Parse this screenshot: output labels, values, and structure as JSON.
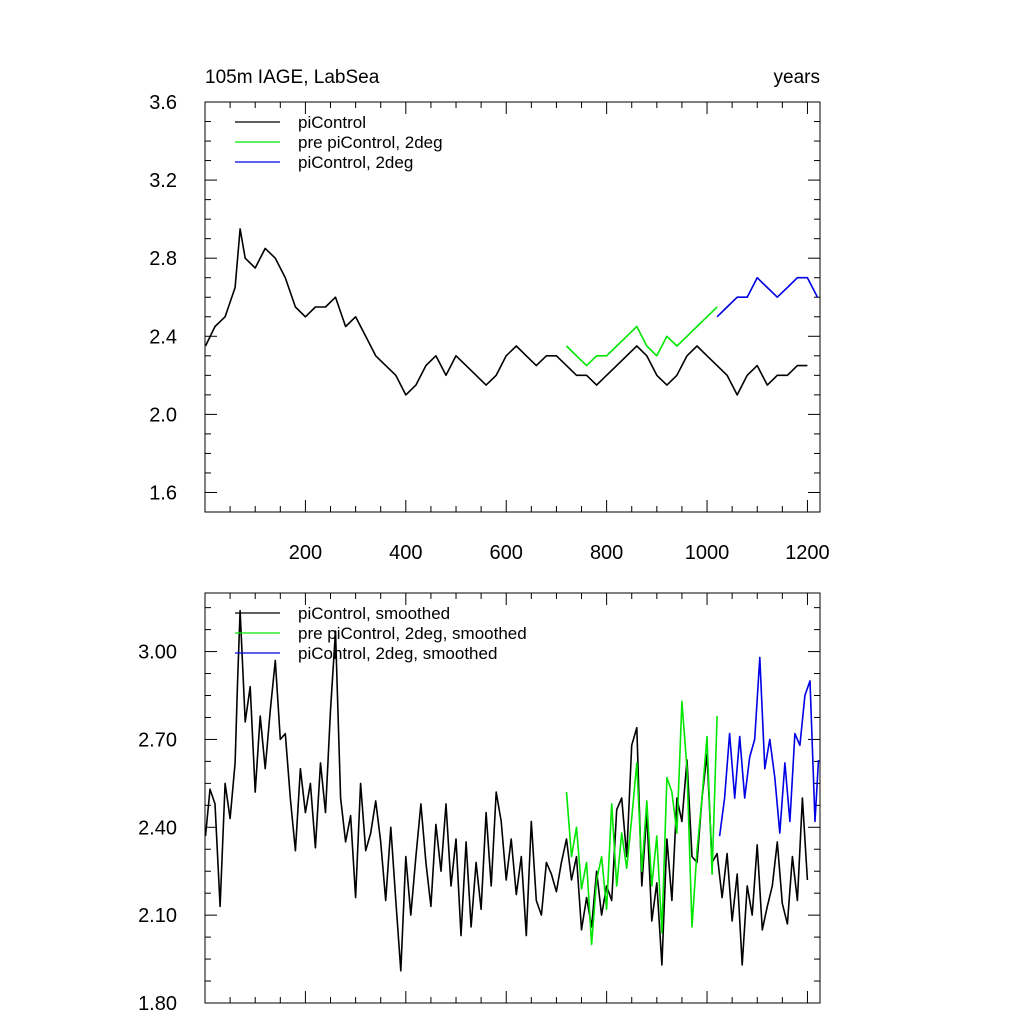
{
  "colors": {
    "black": "#000000",
    "green": "#00e600",
    "blue": "#0000e6"
  },
  "chart_data": [
    {
      "type": "line",
      "title": "105m IAGE, LabSea",
      "title_right": "years",
      "xlabel": "",
      "ylabel": "",
      "xlim": [
        0,
        1225
      ],
      "ylim": [
        1.5,
        3.6
      ],
      "xticks": [
        200,
        400,
        600,
        800,
        1000,
        1200
      ],
      "xtick_labels": [
        "200",
        "400",
        "600",
        "800",
        "1000",
        "1200"
      ],
      "yticks": [
        1.6,
        2.0,
        2.4,
        2.8,
        3.2,
        3.6
      ],
      "ytick_labels": [
        "1.6",
        "2.0",
        "2.4",
        "2.8",
        "3.2",
        "3.6"
      ],
      "legend_position": "top-left",
      "series": [
        {
          "name": "piControl",
          "color": "#000000",
          "x": [
            1,
            20,
            40,
            60,
            70,
            80,
            100,
            120,
            140,
            160,
            180,
            200,
            220,
            240,
            260,
            280,
            300,
            320,
            340,
            360,
            380,
            400,
            420,
            440,
            460,
            480,
            500,
            520,
            540,
            560,
            580,
            600,
            620,
            640,
            660,
            680,
            700,
            720,
            740,
            760,
            780,
            800,
            820,
            840,
            860,
            880,
            900,
            920,
            940,
            960,
            980,
            1000,
            1020,
            1040,
            1060,
            1080,
            1100,
            1120,
            1140,
            1160,
            1180,
            1200
          ],
          "values": [
            2.35,
            2.45,
            2.5,
            2.65,
            2.95,
            2.8,
            2.75,
            2.85,
            2.8,
            2.7,
            2.55,
            2.5,
            2.55,
            2.55,
            2.6,
            2.45,
            2.5,
            2.4,
            2.3,
            2.25,
            2.2,
            2.1,
            2.15,
            2.25,
            2.3,
            2.2,
            2.3,
            2.25,
            2.2,
            2.15,
            2.2,
            2.3,
            2.35,
            2.3,
            2.25,
            2.3,
            2.3,
            2.25,
            2.2,
            2.2,
            2.15,
            2.2,
            2.25,
            2.3,
            2.35,
            2.3,
            2.2,
            2.15,
            2.2,
            2.3,
            2.35,
            2.3,
            2.25,
            2.2,
            2.1,
            2.2,
            2.25,
            2.15,
            2.2,
            2.2,
            2.25,
            2.25
          ]
        },
        {
          "name": "pre piControl, 2deg",
          "color": "#00e600",
          "x": [
            720,
            740,
            760,
            780,
            800,
            820,
            840,
            860,
            880,
            900,
            920,
            940,
            960,
            980,
            1000,
            1020
          ],
          "values": [
            2.35,
            2.3,
            2.25,
            2.3,
            2.3,
            2.35,
            2.4,
            2.45,
            2.35,
            2.3,
            2.4,
            2.35,
            2.4,
            2.45,
            2.5,
            2.55
          ]
        },
        {
          "name": "piControl, 2deg",
          "color": "#0000e6",
          "x": [
            1020,
            1040,
            1060,
            1080,
            1100,
            1120,
            1140,
            1160,
            1180,
            1200,
            1220
          ],
          "values": [
            2.5,
            2.55,
            2.6,
            2.6,
            2.7,
            2.65,
            2.6,
            2.65,
            2.7,
            2.7,
            2.6
          ]
        }
      ]
    },
    {
      "type": "line",
      "title": "",
      "xlabel": "",
      "ylabel": "",
      "xlim": [
        0,
        1225
      ],
      "ylim": [
        1.8,
        3.2
      ],
      "xticks": [
        200,
        400,
        600,
        800,
        1000,
        1200
      ],
      "xtick_labels": [],
      "yticks": [
        1.8,
        2.1,
        2.4,
        2.7,
        3.0
      ],
      "ytick_labels": [
        "1.80",
        "2.10",
        "2.40",
        "2.70",
        "3.00"
      ],
      "legend_position": "top-left",
      "series": [
        {
          "name": "piControl, smoothed",
          "color": "#000000",
          "x": [
            1,
            10,
            20,
            30,
            40,
            50,
            60,
            65,
            70,
            80,
            90,
            100,
            110,
            120,
            130,
            140,
            150,
            160,
            170,
            180,
            190,
            200,
            210,
            220,
            230,
            240,
            250,
            260,
            270,
            280,
            290,
            300,
            310,
            320,
            330,
            340,
            350,
            360,
            370,
            380,
            390,
            400,
            410,
            420,
            430,
            440,
            450,
            460,
            470,
            480,
            490,
            500,
            510,
            520,
            530,
            540,
            550,
            560,
            570,
            580,
            590,
            600,
            610,
            620,
            630,
            640,
            650,
            660,
            670,
            680,
            690,
            700,
            710,
            720,
            730,
            740,
            750,
            760,
            770,
            780,
            790,
            800,
            810,
            820,
            830,
            840,
            850,
            860,
            870,
            880,
            890,
            900,
            910,
            920,
            930,
            940,
            950,
            960,
            970,
            980,
            990,
            1000,
            1010,
            1020,
            1030,
            1040,
            1050,
            1060,
            1070,
            1080,
            1090,
            1100,
            1110,
            1120,
            1130,
            1140,
            1150,
            1160,
            1170,
            1180,
            1190,
            1200
          ],
          "values": [
            2.37,
            2.53,
            2.48,
            2.13,
            2.55,
            2.43,
            2.62,
            2.9,
            3.14,
            2.76,
            2.88,
            2.52,
            2.78,
            2.6,
            2.8,
            2.97,
            2.7,
            2.72,
            2.5,
            2.32,
            2.6,
            2.45,
            2.55,
            2.33,
            2.62,
            2.45,
            2.8,
            3.07,
            2.5,
            2.35,
            2.44,
            2.16,
            2.55,
            2.32,
            2.38,
            2.49,
            2.35,
            2.15,
            2.4,
            2.15,
            1.91,
            2.3,
            2.1,
            2.3,
            2.48,
            2.28,
            2.13,
            2.41,
            2.25,
            2.48,
            2.2,
            2.36,
            2.03,
            2.35,
            2.06,
            2.28,
            2.12,
            2.45,
            2.2,
            2.52,
            2.42,
            2.22,
            2.36,
            2.17,
            2.3,
            2.03,
            2.42,
            2.15,
            2.1,
            2.28,
            2.24,
            2.18,
            2.28,
            2.36,
            2.22,
            2.3,
            2.05,
            2.16,
            2.06,
            2.25,
            2.1,
            2.2,
            2.15,
            2.46,
            2.5,
            2.3,
            2.68,
            2.74,
            2.2,
            2.45,
            2.08,
            2.21,
            1.93,
            2.36,
            2.15,
            2.5,
            2.42,
            2.63,
            2.3,
            2.28,
            2.5,
            2.65,
            2.28,
            2.31,
            2.16,
            2.31,
            2.08,
            2.24,
            1.93,
            2.2,
            2.1,
            2.34,
            2.05,
            2.13,
            2.2,
            2.35,
            2.14,
            2.07,
            2.3,
            2.15,
            2.5,
            2.22
          ]
        },
        {
          "name": "pre piControl, 2deg, smoothed",
          "color": "#00e600",
          "x": [
            720,
            730,
            740,
            750,
            760,
            770,
            780,
            790,
            800,
            810,
            820,
            830,
            840,
            850,
            860,
            870,
            880,
            890,
            900,
            910,
            920,
            930,
            940,
            950,
            960,
            970,
            980,
            990,
            1000,
            1010,
            1020
          ],
          "values": [
            2.52,
            2.3,
            2.4,
            2.19,
            2.28,
            2.0,
            2.22,
            2.3,
            2.12,
            2.48,
            2.2,
            2.38,
            2.26,
            2.43,
            2.62,
            2.25,
            2.49,
            2.2,
            2.37,
            2.04,
            2.57,
            2.52,
            2.38,
            2.83,
            2.6,
            2.06,
            2.32,
            2.5,
            2.71,
            2.24,
            2.78
          ]
        },
        {
          "name": "piControl, 2deg, smoothed",
          "color": "#0000e6",
          "x": [
            1025,
            1035,
            1045,
            1055,
            1065,
            1075,
            1085,
            1095,
            1105,
            1115,
            1125,
            1135,
            1145,
            1155,
            1165,
            1175,
            1185,
            1195,
            1205,
            1215,
            1222
          ],
          "values": [
            2.37,
            2.5,
            2.72,
            2.5,
            2.71,
            2.5,
            2.64,
            2.7,
            2.98,
            2.6,
            2.7,
            2.57,
            2.38,
            2.62,
            2.42,
            2.72,
            2.68,
            2.85,
            2.9,
            2.42,
            2.63
          ]
        }
      ]
    }
  ]
}
